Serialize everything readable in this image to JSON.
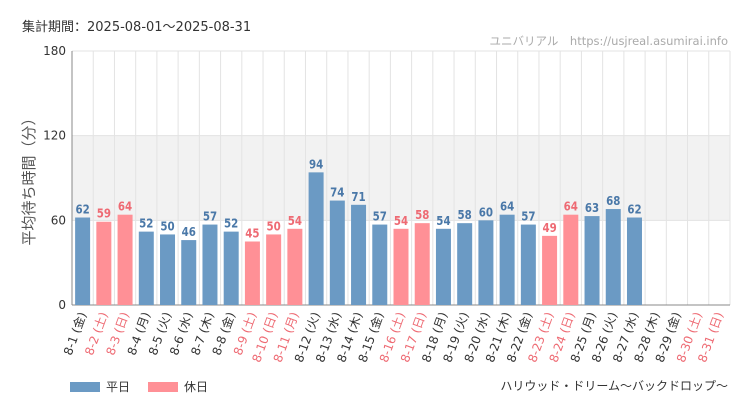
{
  "header": {
    "period": "集計期間：2025-08-01〜2025-08-31",
    "watermark": "ユニバリアル　https://usjreal.asumirai.info"
  },
  "footer": {
    "attraction": "ハリウッド・ドリーム〜バックドロップ〜"
  },
  "colors": {
    "weekday": "#6b9ac4",
    "holiday": "#ff9096",
    "weekday_label": "#4a78a8",
    "holiday_label": "#ee6a73",
    "band": "#f2f2f2",
    "grid": "#e3e3e3"
  },
  "chart_data": {
    "type": "bar",
    "ylabel": "平均待ち時間（分）",
    "ylim": [
      0,
      180
    ],
    "yticks": [
      0,
      60,
      120,
      180
    ],
    "band": [
      60,
      120
    ],
    "grid": true,
    "legend": [
      {
        "key": "weekday",
        "label": "平日"
      },
      {
        "key": "holiday",
        "label": "休日"
      }
    ],
    "bars": [
      {
        "date": "8-1",
        "day": "(金)",
        "value": 62,
        "type": "weekday"
      },
      {
        "date": "8-2",
        "day": "(土)",
        "value": 59,
        "type": "holiday"
      },
      {
        "date": "8-3",
        "day": "(日)",
        "value": 64,
        "type": "holiday"
      },
      {
        "date": "8-4",
        "day": "(月)",
        "value": 52,
        "type": "weekday"
      },
      {
        "date": "8-5",
        "day": "(火)",
        "value": 50,
        "type": "weekday"
      },
      {
        "date": "8-6",
        "day": "(水)",
        "value": 46,
        "type": "weekday"
      },
      {
        "date": "8-7",
        "day": "(木)",
        "value": 57,
        "type": "weekday"
      },
      {
        "date": "8-8",
        "day": "(金)",
        "value": 52,
        "type": "weekday"
      },
      {
        "date": "8-9",
        "day": "(土)",
        "value": 45,
        "type": "holiday"
      },
      {
        "date": "8-10",
        "day": "(日)",
        "value": 50,
        "type": "holiday"
      },
      {
        "date": "8-11",
        "day": "(月)",
        "value": 54,
        "type": "holiday"
      },
      {
        "date": "8-12",
        "day": "(火)",
        "value": 94,
        "type": "weekday"
      },
      {
        "date": "8-13",
        "day": "(水)",
        "value": 74,
        "type": "weekday"
      },
      {
        "date": "8-14",
        "day": "(木)",
        "value": 71,
        "type": "weekday"
      },
      {
        "date": "8-15",
        "day": "(金)",
        "value": 57,
        "type": "weekday"
      },
      {
        "date": "8-16",
        "day": "(土)",
        "value": 54,
        "type": "holiday"
      },
      {
        "date": "8-17",
        "day": "(日)",
        "value": 58,
        "type": "holiday"
      },
      {
        "date": "8-18",
        "day": "(月)",
        "value": 54,
        "type": "weekday"
      },
      {
        "date": "8-19",
        "day": "(火)",
        "value": 58,
        "type": "weekday"
      },
      {
        "date": "8-20",
        "day": "(水)",
        "value": 60,
        "type": "weekday"
      },
      {
        "date": "8-21",
        "day": "(木)",
        "value": 64,
        "type": "weekday"
      },
      {
        "date": "8-22",
        "day": "(金)",
        "value": 57,
        "type": "weekday"
      },
      {
        "date": "8-23",
        "day": "(土)",
        "value": 49,
        "type": "holiday"
      },
      {
        "date": "8-24",
        "day": "(日)",
        "value": 64,
        "type": "holiday"
      },
      {
        "date": "8-25",
        "day": "(月)",
        "value": 63,
        "type": "weekday"
      },
      {
        "date": "8-26",
        "day": "(火)",
        "value": 68,
        "type": "weekday"
      },
      {
        "date": "8-27",
        "day": "(水)",
        "value": 62,
        "type": "weekday"
      },
      {
        "date": "8-28",
        "day": "(木)",
        "value": null,
        "type": "weekday"
      },
      {
        "date": "8-29",
        "day": "(金)",
        "value": null,
        "type": "weekday"
      },
      {
        "date": "8-30",
        "day": "(土)",
        "value": null,
        "type": "holiday"
      },
      {
        "date": "8-31",
        "day": "(日)",
        "value": null,
        "type": "holiday"
      }
    ]
  }
}
